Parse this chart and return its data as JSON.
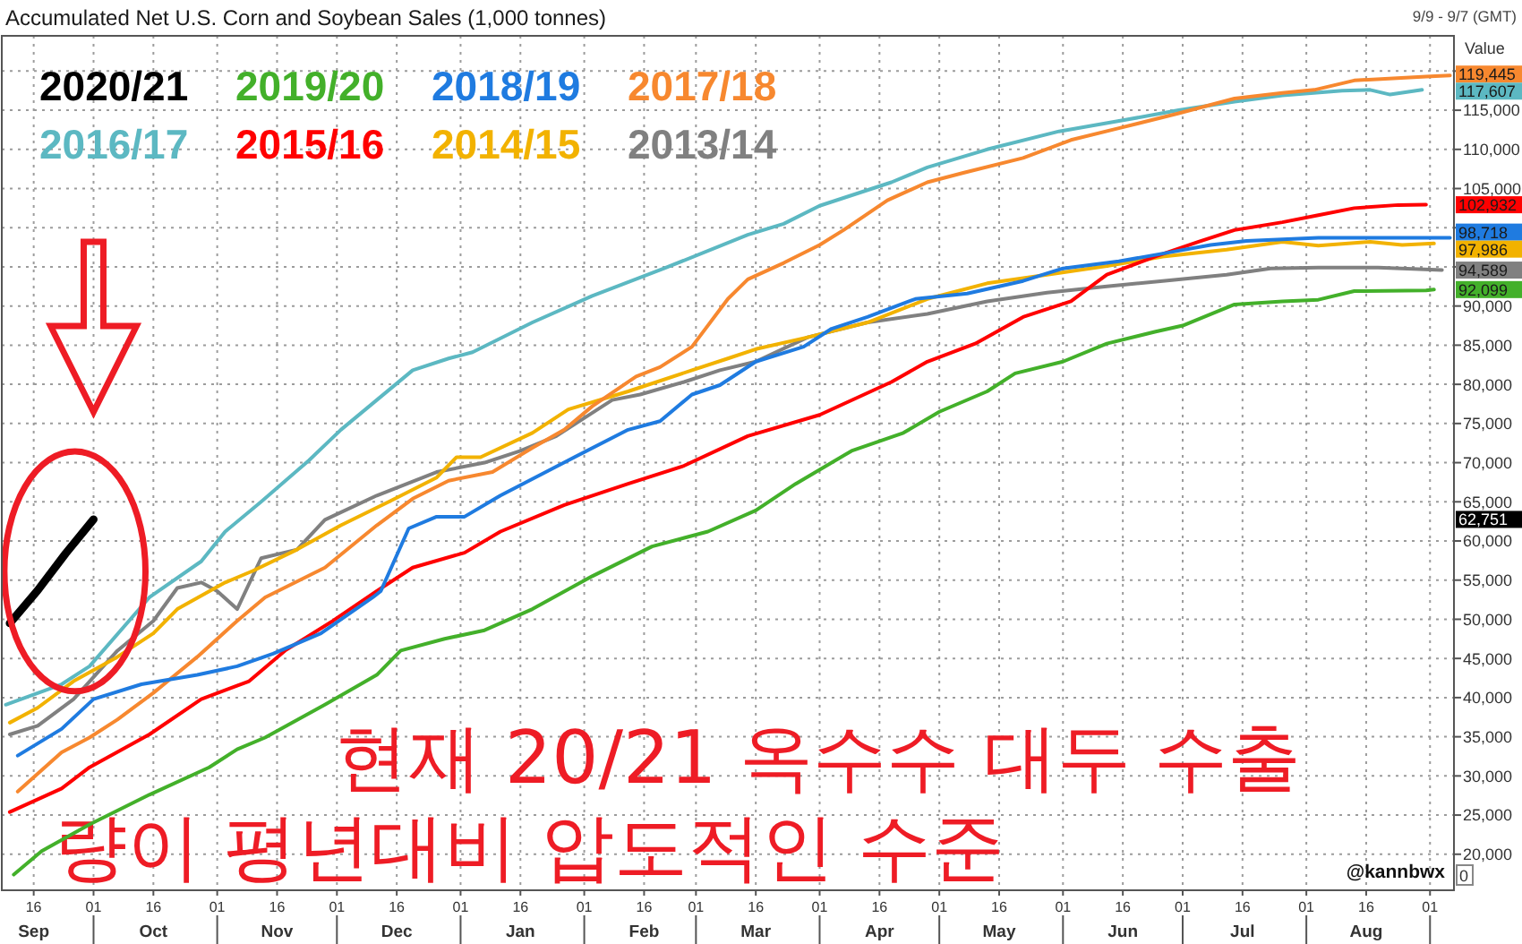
{
  "chart_data": {
    "type": "line",
    "title": "Accumulated Net U.S. Corn and Soybean Sales (1,000 tonnes)",
    "y2label": "Value",
    "annotations": [
      "9/9 - 9/7 (GMT)",
      "현재 20/21 옥수수 대두 수출\n량이 평년대비 압도적인 수준",
      "@kannbwx",
      "0"
    ],
    "xlim": [
      "2020-09-08",
      "2021-09-07"
    ],
    "xticks": [
      {
        "value": "2020-09-16",
        "label": "16\nSep"
      },
      {
        "value": "2020-10-01",
        "label": "01"
      },
      {
        "value": "2020-10-16",
        "label": "16\nOct"
      },
      {
        "value": "2020-11-01",
        "label": "01"
      },
      {
        "value": "2020-11-16",
        "label": "16\nNov"
      },
      {
        "value": "2020-12-01",
        "label": "01"
      },
      {
        "value": "2020-12-16",
        "label": "16\nDec"
      },
      {
        "value": "2021-01-01",
        "label": "01"
      },
      {
        "value": "2021-01-16",
        "label": "16\nJan"
      },
      {
        "value": "2021-02-01",
        "label": "01"
      },
      {
        "value": "2021-02-16",
        "label": "16\nFeb"
      },
      {
        "value": "2021-03-01",
        "label": "01"
      },
      {
        "value": "2021-03-16",
        "label": "16\nMar"
      },
      {
        "value": "2021-04-01",
        "label": "01"
      },
      {
        "value": "2021-04-16",
        "label": "16\nApr"
      },
      {
        "value": "2021-05-01",
        "label": "01"
      },
      {
        "value": "2021-05-16",
        "label": "16\nMay"
      },
      {
        "value": "2021-06-01",
        "label": "01"
      },
      {
        "value": "2021-06-16",
        "label": "16\nJun"
      },
      {
        "value": "2021-07-01",
        "label": "01"
      },
      {
        "value": "2021-07-16",
        "label": "16\nJul"
      },
      {
        "value": "2021-08-01",
        "label": "01"
      },
      {
        "value": "2021-08-16",
        "label": "16\nAug"
      },
      {
        "value": "2021-09-01",
        "label": "01"
      }
    ],
    "ylim": [
      15400,
      124500
    ],
    "yticks": [
      {
        "value": 20000,
        "label": "20,000"
      },
      {
        "value": 25000,
        "label": "25,000"
      },
      {
        "value": 30000,
        "label": "30,000"
      },
      {
        "value": 35000,
        "label": "35,000"
      },
      {
        "value": 40000,
        "label": "40,000"
      },
      {
        "value": 45000,
        "label": "45,000"
      },
      {
        "value": 50000,
        "label": "50,000"
      },
      {
        "value": 55000,
        "label": "55,000"
      },
      {
        "value": 60000,
        "label": "60,000"
      },
      {
        "value": 65000,
        "label": "65,000"
      },
      {
        "value": 70000,
        "label": "70,000"
      },
      {
        "value": 75000,
        "label": "75,000"
      },
      {
        "value": 80000,
        "label": "80,000"
      },
      {
        "value": 85000,
        "label": "85,000"
      },
      {
        "value": 90000,
        "label": "90,000"
      },
      {
        "value": 95000,
        "label": null
      },
      {
        "value": 100000,
        "label": null
      },
      {
        "value": 105000,
        "label": "105,000"
      },
      {
        "value": 110000,
        "label": "110,000"
      },
      {
        "value": 115000,
        "label": "115,000"
      },
      {
        "value": 120000,
        "label": null
      }
    ],
    "y2lim": [
      15400,
      124500
    ],
    "y2ticks": [
      {
        "value": 119445,
        "label": "119,445"
      },
      {
        "value": 117607,
        "label": "117,607"
      },
      {
        "value": 102932,
        "label": "102,932"
      },
      {
        "value": 98718,
        "label": "98,718"
      },
      {
        "value": 97986,
        "label": "97,986"
      },
      {
        "value": 94589,
        "label": "94,589"
      },
      {
        "value": 92099,
        "label": "92,099"
      },
      {
        "value": 62751,
        "label": "62,751"
      }
    ],
    "grid": true,
    "legend": "top left",
    "series": [
      {
        "name": "2020/21",
        "color": "#000000",
        "x": [
          "2020-09-10",
          "2020-09-17",
          "2020-09-24",
          "2020-10-01"
        ],
        "values": [
          49500,
          53700,
          58400,
          62751
        ]
      },
      {
        "name": "2019/20",
        "color": "#43b02a",
        "x": [
          "2020-09-11",
          "2020-09-18",
          "2020-09-30",
          "2020-10-15",
          "2020-10-30",
          "2020-11-06",
          "2020-11-13",
          "2020-11-28",
          "2020-12-11",
          "2020-12-17",
          "2020-12-28",
          "2021-01-07",
          "2021-01-19",
          "2021-02-03",
          "2021-02-18",
          "2021-03-04",
          "2021-03-16",
          "2021-03-26",
          "2021-04-09",
          "2021-04-22",
          "2021-05-01",
          "2021-05-13",
          "2021-05-20",
          "2021-06-01",
          "2021-06-12",
          "2021-06-24",
          "2021-07-01",
          "2021-07-14",
          "2021-07-26",
          "2021-08-04",
          "2021-08-13",
          "2021-08-31",
          "2021-09-02"
        ],
        "values": [
          17400,
          20400,
          23800,
          27600,
          31100,
          33400,
          34900,
          39100,
          42900,
          46000,
          47500,
          48600,
          51300,
          55500,
          59300,
          61200,
          63900,
          67300,
          71500,
          73800,
          76500,
          79100,
          81400,
          82900,
          85200,
          86700,
          87500,
          90200,
          90600,
          90800,
          91900,
          92000,
          92099
        ]
      },
      {
        "name": "2018/19",
        "color": "#1f7be0",
        "x": [
          "2020-09-12",
          "2020-09-23",
          "2020-10-01",
          "2020-10-13",
          "2020-10-27",
          "2020-11-06",
          "2020-11-15",
          "2020-11-27",
          "2020-12-10",
          "2020-12-12",
          "2020-12-19",
          "2020-12-26",
          "2021-01-02",
          "2021-01-11",
          "2021-01-28",
          "2021-02-12",
          "2021-02-20",
          "2021-02-28",
          "2021-03-07",
          "2021-03-16",
          "2021-03-28",
          "2021-04-04",
          "2021-04-13",
          "2021-04-25",
          "2021-05-08",
          "2021-05-22",
          "2021-06-01",
          "2021-06-15",
          "2021-06-26",
          "2021-07-08",
          "2021-07-17",
          "2021-08-04",
          "2021-08-31",
          "2021-09-06"
        ],
        "values": [
          32600,
          36000,
          39800,
          41700,
          42900,
          44000,
          45600,
          48200,
          52800,
          53600,
          61600,
          63100,
          63100,
          65800,
          70300,
          74200,
          75300,
          78700,
          79900,
          82900,
          84800,
          87100,
          88600,
          90900,
          91600,
          93200,
          94800,
          95700,
          96700,
          97800,
          98300,
          98700,
          98700,
          98718
        ]
      },
      {
        "name": "2017/18",
        "color": "#f7882f",
        "x": [
          "2020-09-12",
          "2020-09-23",
          "2020-09-30",
          "2020-10-07",
          "2020-10-16",
          "2020-10-27",
          "2020-11-06",
          "2020-11-13",
          "2020-11-28",
          "2020-12-11",
          "2020-12-20",
          "2020-12-29",
          "2021-01-09",
          "2021-01-19",
          "2021-01-27",
          "2021-02-03",
          "2021-02-14",
          "2021-02-20",
          "2021-02-28",
          "2021-03-09",
          "2021-03-14",
          "2021-03-23",
          "2021-04-01",
          "2021-04-07",
          "2021-04-18",
          "2021-04-28",
          "2021-05-07",
          "2021-05-22",
          "2021-06-03",
          "2021-06-15",
          "2021-06-30",
          "2021-07-14",
          "2021-07-26",
          "2021-08-03",
          "2021-08-13",
          "2021-08-31",
          "2021-09-06"
        ],
        "values": [
          28000,
          33000,
          34900,
          37200,
          40600,
          45200,
          49800,
          52800,
          56600,
          62000,
          65400,
          67700,
          68800,
          71900,
          74200,
          77200,
          81000,
          82200,
          84800,
          90900,
          93400,
          95500,
          97800,
          99700,
          103500,
          105800,
          107000,
          108900,
          111200,
          112700,
          114600,
          116500,
          117200,
          117600,
          118800,
          119300,
          119445
        ]
      },
      {
        "name": "2016/17",
        "color": "#5cb8c2",
        "x": [
          "2020-09-09",
          "2020-09-23",
          "2020-09-30",
          "2020-10-15",
          "2020-10-28",
          "2020-11-03",
          "2020-11-12",
          "2020-11-24",
          "2020-12-02",
          "2020-12-11",
          "2020-12-20",
          "2020-12-29",
          "2021-01-04",
          "2021-01-19",
          "2021-02-03",
          "2021-02-21",
          "2021-03-14",
          "2021-03-23",
          "2021-04-01",
          "2021-04-19",
          "2021-04-28",
          "2021-05-13",
          "2021-05-31",
          "2021-06-17",
          "2021-06-30",
          "2021-07-14",
          "2021-07-26",
          "2021-08-10",
          "2021-08-17",
          "2021-08-22",
          "2021-08-30"
        ],
        "values": [
          39100,
          41700,
          44000,
          52800,
          57400,
          61200,
          65000,
          70300,
          74200,
          78000,
          81800,
          83300,
          84100,
          87900,
          91300,
          94800,
          99100,
          100500,
          102800,
          105800,
          107700,
          110000,
          112300,
          113800,
          115000,
          116100,
          116900,
          117500,
          117600,
          117000,
          117607
        ]
      },
      {
        "name": "2015/16",
        "color": "#ff0000",
        "x": [
          "2020-09-10",
          "2020-09-23",
          "2020-09-30",
          "2020-10-15",
          "2020-10-28",
          "2020-11-09",
          "2020-11-18",
          "2020-11-30",
          "2020-12-11",
          "2020-12-20",
          "2021-01-02",
          "2021-01-11",
          "2021-01-27",
          "2021-02-12",
          "2021-02-26",
          "2021-03-14",
          "2021-04-01",
          "2021-04-19",
          "2021-04-28",
          "2021-05-10",
          "2021-05-22",
          "2021-06-03",
          "2021-06-12",
          "2021-06-24",
          "2021-07-05",
          "2021-07-14",
          "2021-07-26",
          "2021-08-04",
          "2021-08-13",
          "2021-08-24",
          "2021-08-31"
        ],
        "values": [
          25400,
          28400,
          31100,
          35300,
          39800,
          42100,
          46000,
          49800,
          53600,
          56600,
          58500,
          61200,
          64600,
          67300,
          69600,
          73400,
          76100,
          80300,
          82900,
          85200,
          88600,
          90600,
          94000,
          96300,
          98200,
          99700,
          100700,
          101600,
          102500,
          102900,
          102932
        ]
      },
      {
        "name": "2014/15",
        "color": "#f2b200",
        "x": [
          "2020-09-10",
          "2020-09-17",
          "2020-09-26",
          "2020-10-07",
          "2020-10-16",
          "2020-10-22",
          "2020-11-03",
          "2020-11-10",
          "2020-11-21",
          "2020-12-02",
          "2020-12-14",
          "2020-12-26",
          "2020-12-31",
          "2021-01-06",
          "2021-01-19",
          "2021-01-28",
          "2021-02-12",
          "2021-02-28",
          "2021-03-09",
          "2021-03-16",
          "2021-03-29",
          "2021-04-13",
          "2021-04-28",
          "2021-05-13",
          "2021-05-28",
          "2021-06-12",
          "2021-06-26",
          "2021-07-12",
          "2021-07-26",
          "2021-08-04",
          "2021-08-17",
          "2021-08-25",
          "2021-09-02"
        ],
        "values": [
          36800,
          38700,
          42100,
          45200,
          48200,
          51300,
          54700,
          56200,
          58900,
          62000,
          65000,
          68100,
          70700,
          70700,
          73800,
          76800,
          79100,
          81800,
          83300,
          84500,
          86000,
          87900,
          90900,
          92900,
          94000,
          95100,
          96300,
          97200,
          98200,
          97700,
          98200,
          97800,
          97986
        ]
      },
      {
        "name": "2013/14",
        "color": "#808080",
        "x": [
          "2020-09-10",
          "2020-09-17",
          "2020-09-26",
          "2020-10-07",
          "2020-10-16",
          "2020-10-22",
          "2020-10-28",
          "2020-11-01",
          "2020-11-06",
          "2020-11-12",
          "2020-11-21",
          "2020-11-28",
          "2020-12-11",
          "2020-12-26",
          "2021-01-07",
          "2021-01-16",
          "2021-01-25",
          "2021-02-08",
          "2021-02-15",
          "2021-02-26",
          "2021-03-07",
          "2021-03-16",
          "2021-03-29",
          "2021-04-13",
          "2021-04-28",
          "2021-05-13",
          "2021-05-28",
          "2021-06-12",
          "2021-06-26",
          "2021-07-12",
          "2021-07-23",
          "2021-08-04",
          "2021-08-19",
          "2021-09-04"
        ],
        "values": [
          35300,
          36400,
          39800,
          46000,
          49800,
          54000,
          54700,
          53600,
          51300,
          57800,
          58900,
          62700,
          65800,
          68800,
          70000,
          71500,
          73400,
          78000,
          78700,
          80300,
          81800,
          82900,
          86000,
          87900,
          89000,
          90600,
          91700,
          92500,
          93200,
          94000,
          94800,
          94900,
          94900,
          94589
        ]
      }
    ]
  }
}
